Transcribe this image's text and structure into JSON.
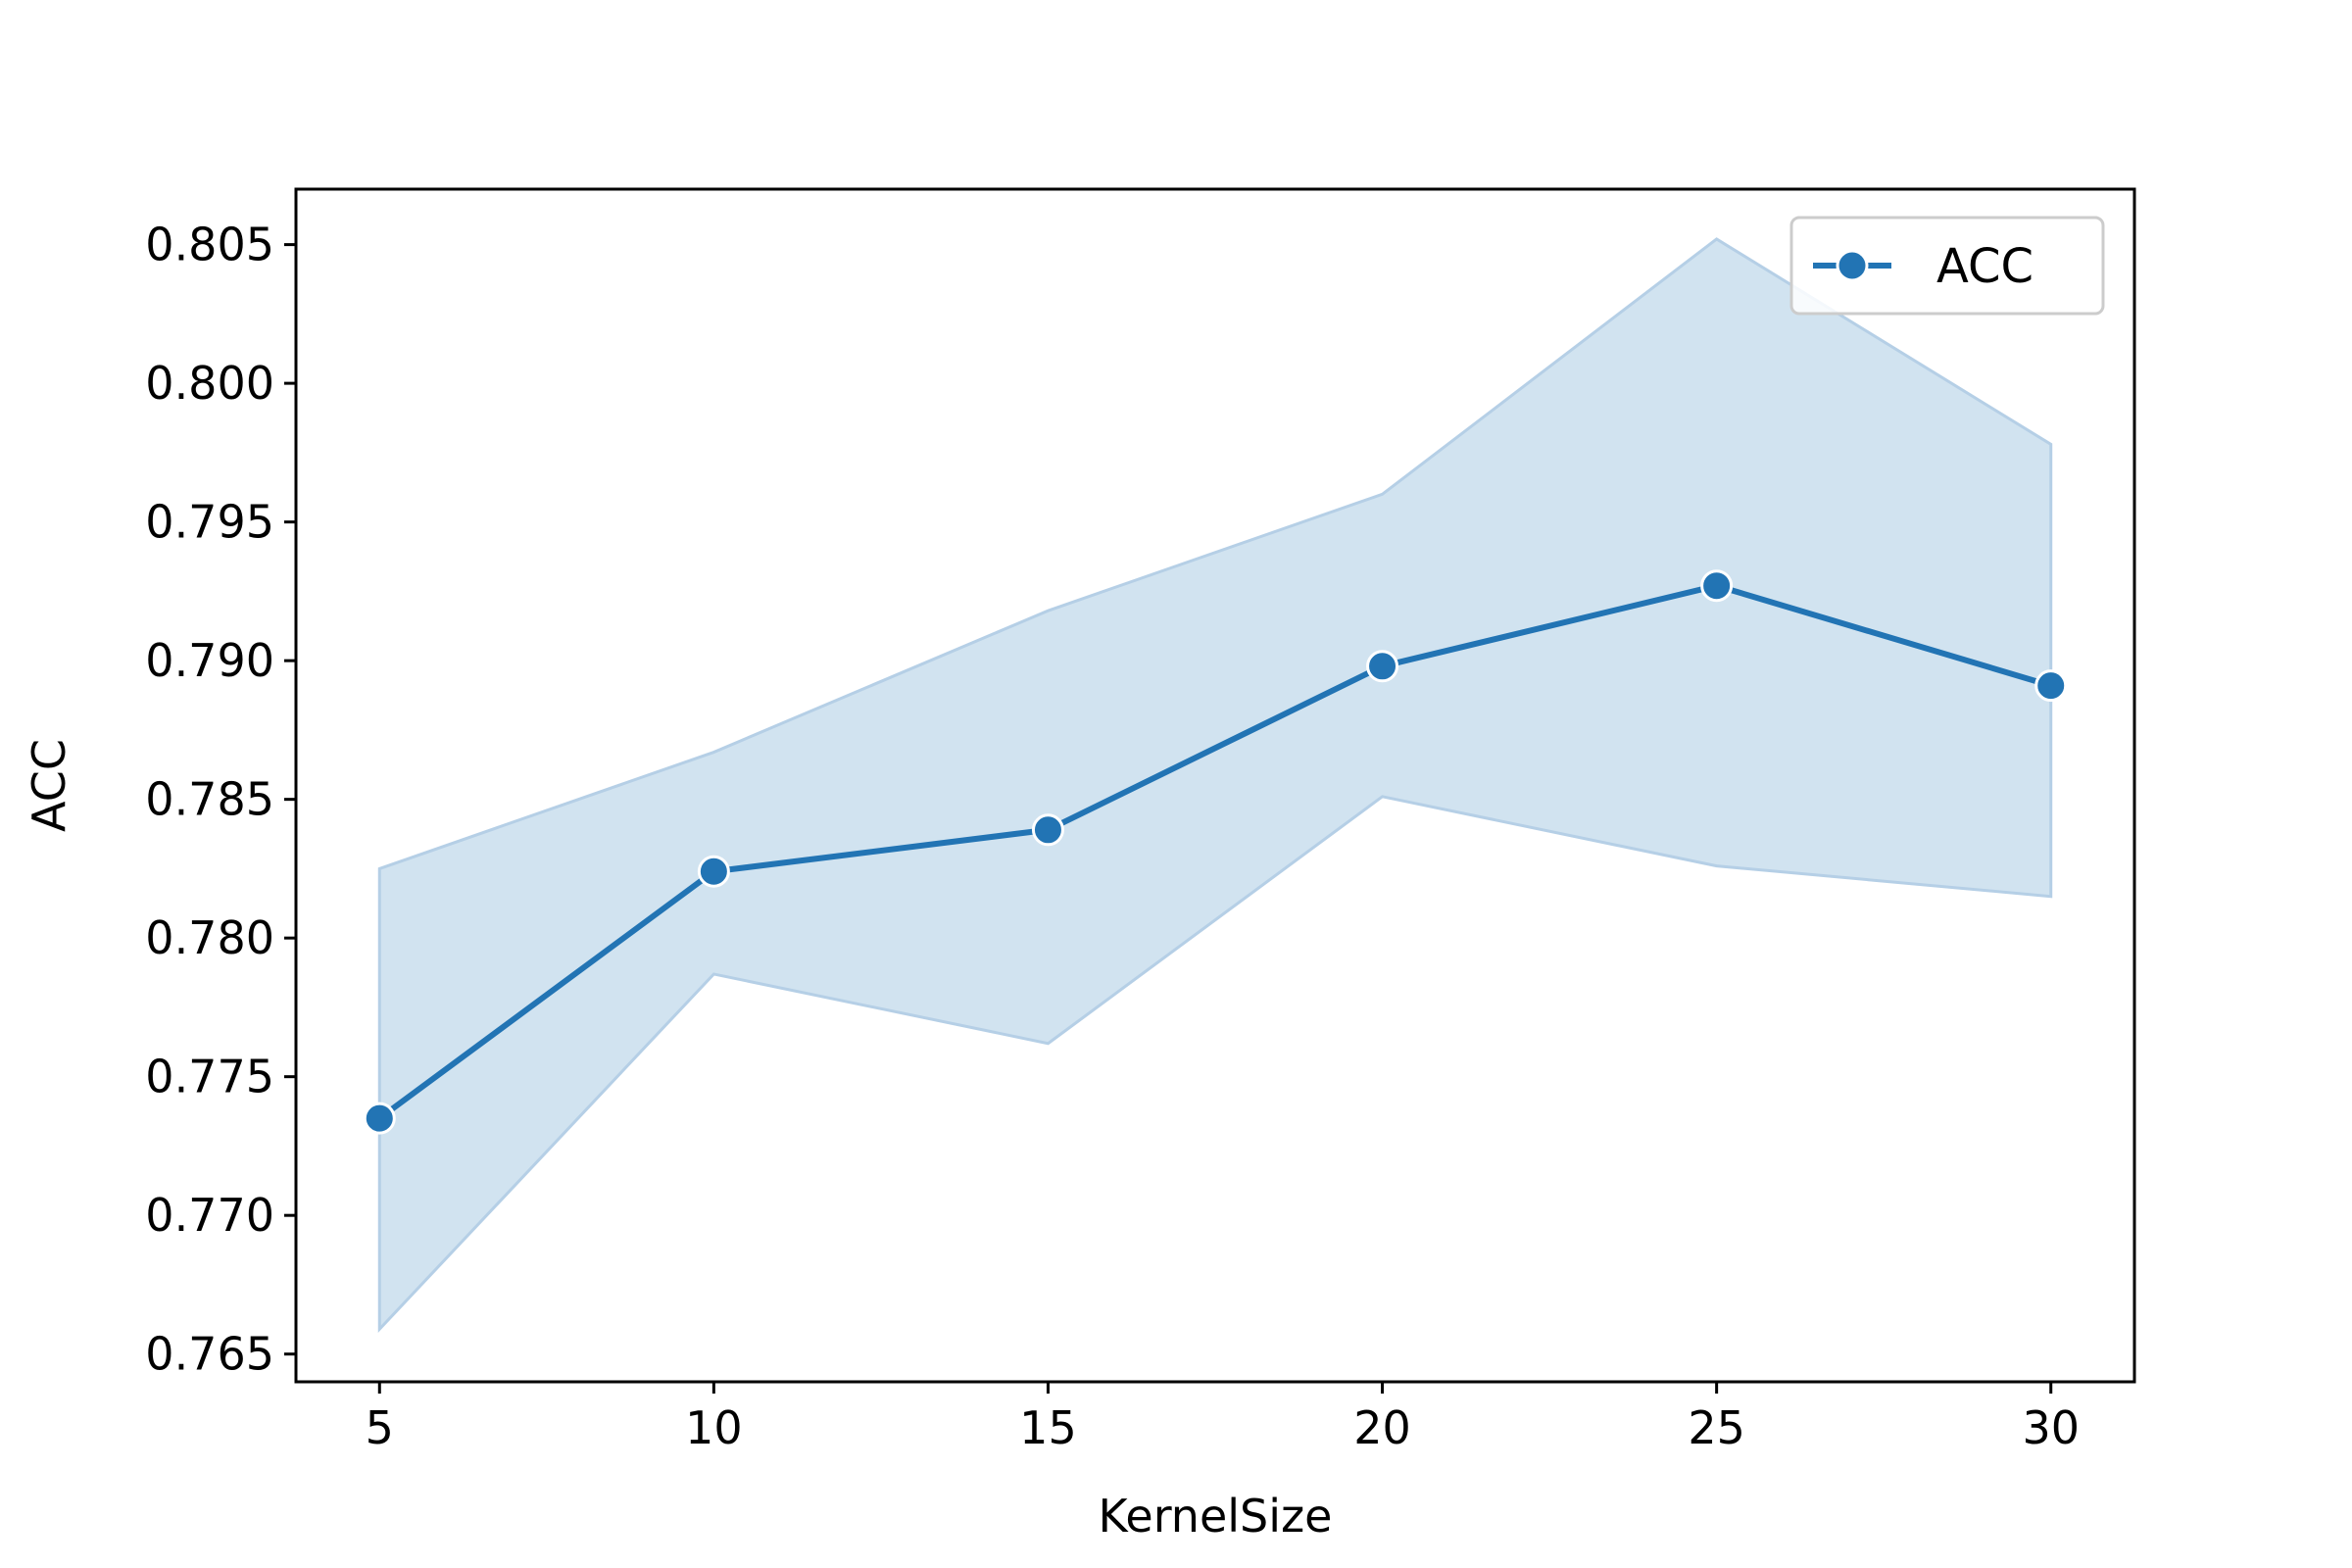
{
  "chart_data": {
    "type": "line",
    "title": "",
    "xlabel": "KernelSize",
    "ylabel": "ACC",
    "x": [
      5,
      10,
      15,
      20,
      25,
      30
    ],
    "xticks": [
      "5",
      "10",
      "15",
      "20",
      "25",
      "30"
    ],
    "yticks": [
      "0.765",
      "0.770",
      "0.775",
      "0.780",
      "0.785",
      "0.790",
      "0.795",
      "0.800",
      "0.805"
    ],
    "ytick_values": [
      0.765,
      0.77,
      0.775,
      0.78,
      0.785,
      0.79,
      0.795,
      0.8,
      0.805
    ],
    "xlim": [
      3.75,
      31.25
    ],
    "ylim": [
      0.764,
      0.807
    ],
    "grid": false,
    "legend_position": "top-right",
    "series": [
      {
        "name": "ACC",
        "values": [
          0.7735,
          0.7824,
          0.7839,
          0.7898,
          0.7927,
          0.7891
        ],
        "ci_upper": [
          0.7825,
          0.7867,
          0.7918,
          0.796,
          0.8052,
          0.7978
        ],
        "ci_lower": [
          0.7659,
          0.7787,
          0.7762,
          0.7851,
          0.7826,
          0.7815
        ],
        "color": "#2274b4",
        "band_color": "#d1e3f0",
        "band_edge_color": "#b5cfe6"
      }
    ]
  }
}
